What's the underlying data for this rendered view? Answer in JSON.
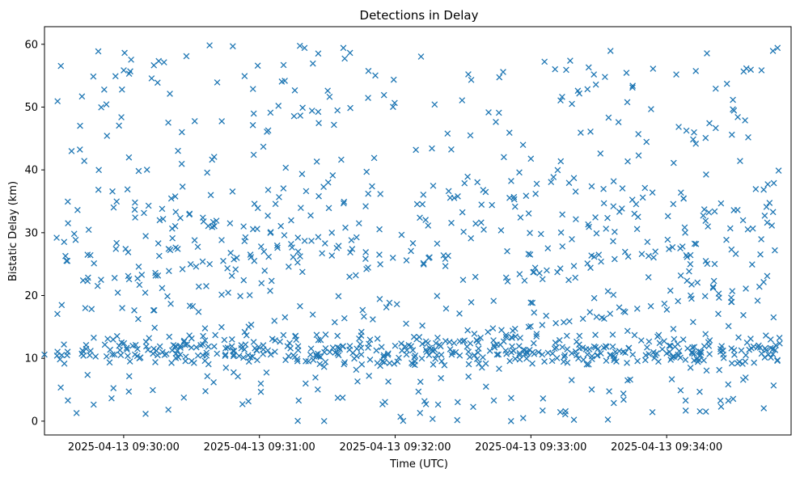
{
  "chart_data": {
    "type": "scatter",
    "title": "Detections in Delay",
    "xlabel": "Time (UTC)",
    "ylabel": "Bistatic Delay (km)",
    "x_ticks": [
      "2025-04-13 09:30:00",
      "2025-04-13 09:31:00",
      "2025-04-13 09:32:00",
      "2025-04-13 09:33:00",
      "2025-04-13 09:34:00"
    ],
    "y_ticks": [
      "0",
      "10",
      "20",
      "30",
      "40",
      "50",
      "60"
    ],
    "xlim": [
      "2025-04-13 09:29:25",
      "2025-04-13 09:34:55"
    ],
    "ylim": [
      -2.2,
      62.8
    ],
    "marker": "x",
    "color": "#1f77b4",
    "grid": false,
    "point_count_estimate": 1200,
    "series": [
      {
        "description_track": "t_ramp_up",
        "points": [
          [
            "09:29:44",
            22.3
          ],
          [
            "09:29:50",
            22.5
          ],
          [
            "09:29:56",
            22.8
          ],
          [
            "09:30:02",
            23.1
          ],
          [
            "09:30:08",
            23.3
          ],
          [
            "09:30:14",
            23.6
          ],
          [
            "09:30:20",
            23.9
          ],
          [
            "09:30:26",
            24.2
          ],
          [
            "09:30:32",
            24.6
          ],
          [
            "09:30:38",
            25.0
          ],
          [
            "09:30:44",
            25.5
          ],
          [
            "09:30:50",
            26.0
          ],
          [
            "09:30:56",
            26.5
          ],
          [
            "09:31:02",
            27.0
          ],
          [
            "09:31:08",
            27.6
          ],
          [
            "09:31:14",
            28.2
          ],
          [
            "09:31:20",
            28.7
          ],
          [
            "09:31:26",
            29.3
          ],
          [
            "09:31:32",
            30.0
          ],
          [
            "09:31:38",
            30.8
          ],
          [
            "09:31:44",
            31.5
          ]
        ]
      },
      {
        "description_track": "t_ramp_down",
        "points": [
          [
            "09:30:05",
            34.8
          ],
          [
            "09:30:11",
            34.3
          ],
          [
            "09:30:17",
            33.8
          ],
          [
            "09:30:23",
            33.3
          ],
          [
            "09:30:29",
            32.9
          ],
          [
            "09:30:35",
            32.4
          ],
          [
            "09:30:41",
            31.9
          ],
          [
            "09:30:47",
            31.5
          ],
          [
            "09:30:53",
            31.0
          ],
          [
            "09:30:59",
            30.6
          ],
          [
            "09:31:05",
            30.1
          ],
          [
            "09:31:11",
            29.6
          ],
          [
            "09:31:17",
            29.2
          ],
          [
            "09:31:23",
            28.7
          ],
          [
            "09:31:29",
            28.3
          ],
          [
            "09:31:35",
            27.9
          ],
          [
            "09:31:41",
            27.4
          ],
          [
            "09:31:47",
            26.9
          ],
          [
            "09:31:53",
            26.5
          ],
          [
            "09:31:59",
            26.0
          ],
          [
            "09:32:05",
            25.6
          ]
        ]
      },
      {
        "description_track": "t_flat_12",
        "points": [
          [
            "09:29:58",
            12.0
          ],
          [
            "09:30:04",
            12.0
          ],
          [
            "09:30:10",
            11.9
          ],
          [
            "09:30:16",
            11.9
          ],
          [
            "09:30:22",
            12.1
          ],
          [
            "09:30:28",
            12.2
          ],
          [
            "09:30:34",
            12.1
          ],
          [
            "09:30:40",
            11.9
          ],
          [
            "09:30:46",
            11.7
          ],
          [
            "09:30:52",
            11.6
          ],
          [
            "09:30:58",
            11.6
          ]
        ]
      },
      {
        "description_track": "t_flat_10_5",
        "points": [
          [
            "09:29:25",
            10.6
          ],
          [
            "09:29:35",
            10.5
          ],
          [
            "09:29:45",
            10.5
          ],
          [
            "09:29:55",
            10.6
          ],
          [
            "09:30:05",
            10.6
          ],
          [
            "09:30:15",
            10.5
          ],
          [
            "09:30:25",
            10.6
          ],
          [
            "09:30:35",
            10.5
          ],
          [
            "09:30:45",
            10.6
          ],
          [
            "09:30:55",
            10.5
          ],
          [
            "09:31:05",
            10.6
          ],
          [
            "09:31:15",
            10.5
          ],
          [
            "09:31:25",
            10.6
          ],
          [
            "09:31:35",
            10.5
          ],
          [
            "09:31:45",
            10.6
          ],
          [
            "09:31:55",
            10.5
          ],
          [
            "09:32:05",
            10.6
          ],
          [
            "09:32:15",
            10.5
          ],
          [
            "09:32:25",
            10.6
          ],
          [
            "09:32:35",
            10.5
          ],
          [
            "09:32:45",
            10.6
          ],
          [
            "09:32:55",
            10.5
          ],
          [
            "09:33:05",
            10.6
          ],
          [
            "09:33:15",
            10.5
          ],
          [
            "09:33:25",
            10.6
          ],
          [
            "09:33:35",
            10.5
          ],
          [
            "09:33:45",
            10.6
          ],
          [
            "09:33:55",
            10.5
          ],
          [
            "09:34:05",
            10.6
          ],
          [
            "09:34:15",
            10.5
          ],
          [
            "09:34:25",
            10.6
          ],
          [
            "09:34:35",
            10.5
          ],
          [
            "09:34:45",
            10.6
          ]
        ]
      },
      {
        "description_track": "t_ramp_12_13",
        "points": [
          [
            "09:31:48",
            11.7
          ],
          [
            "09:31:54",
            11.8
          ],
          [
            "09:32:00",
            12.0
          ],
          [
            "09:32:06",
            12.1
          ],
          [
            "09:32:12",
            12.3
          ],
          [
            "09:32:18",
            12.4
          ],
          [
            "09:32:24",
            12.6
          ],
          [
            "09:32:30",
            12.7
          ],
          [
            "09:32:36",
            12.9
          ]
        ]
      },
      {
        "description_track": "t_ramp_long",
        "points": [
          [
            "09:32:35",
            13.9
          ],
          [
            "09:32:41",
            14.2
          ],
          [
            "09:32:47",
            14.5
          ],
          [
            "09:32:53",
            14.7
          ],
          [
            "09:32:59",
            15.0
          ],
          [
            "09:33:05",
            15.3
          ],
          [
            "09:33:11",
            15.6
          ],
          [
            "09:33:17",
            15.9
          ],
          [
            "09:33:23",
            16.3
          ],
          [
            "09:33:29",
            16.6
          ],
          [
            "09:33:35",
            17.1
          ],
          [
            "09:33:41",
            17.5
          ],
          [
            "09:33:47",
            17.9
          ],
          [
            "09:33:53",
            18.3
          ],
          [
            "09:33:59",
            18.7
          ],
          [
            "09:34:05",
            19.1
          ],
          [
            "09:34:11",
            19.5
          ],
          [
            "09:34:17",
            19.9
          ],
          [
            "09:34:23",
            20.3
          ],
          [
            "09:34:29",
            20.7
          ],
          [
            "09:34:35",
            21.1
          ],
          [
            "09:34:41",
            21.4
          ]
        ]
      },
      {
        "description_track": "t_ramp_mid",
        "points": [
          [
            "09:32:55",
            23.4
          ],
          [
            "09:33:01",
            23.7
          ],
          [
            "09:33:07",
            24.0
          ],
          [
            "09:33:13",
            24.3
          ],
          [
            "09:33:19",
            24.7
          ],
          [
            "09:33:25",
            25.1
          ],
          [
            "09:33:31",
            25.4
          ],
          [
            "09:33:37",
            25.8
          ],
          [
            "09:33:43",
            26.2
          ],
          [
            "09:33:49",
            26.6
          ],
          [
            "09:33:55",
            27.0
          ],
          [
            "09:34:01",
            27.4
          ],
          [
            "09:34:07",
            27.8
          ],
          [
            "09:34:13",
            28.2
          ]
        ]
      }
    ]
  }
}
